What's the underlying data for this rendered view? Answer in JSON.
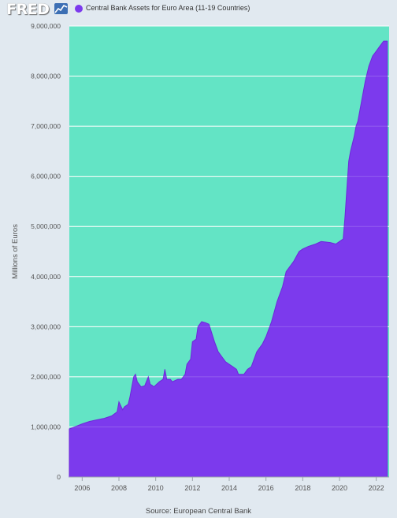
{
  "header": {
    "logo_text": "FRED",
    "legend_label": "Central Bank Assets for Euro Area (11-19 Countries)"
  },
  "source_text": "Source: European Central Bank",
  "colors": {
    "page_background": "#e1e9f0",
    "plot_background": "#63e4c5",
    "series_fill": "#7c3aed",
    "series_line": "#6d28d9",
    "gridline": "#ffffff",
    "axis_text": "#555555"
  },
  "chart_data": {
    "type": "area",
    "title": "",
    "xlabel": "",
    "ylabel": "Millions of Euros",
    "xlim": [
      2005.3,
      2022.7
    ],
    "ylim": [
      0,
      9000000
    ],
    "grid": true,
    "legend_position": "top-left",
    "x_tick_labels": [
      "2006",
      "2008",
      "2010",
      "2012",
      "2014",
      "2016",
      "2018",
      "2020",
      "2022"
    ],
    "y_tick_labels": [
      "0",
      "1,000,000",
      "2,000,000",
      "3,000,000",
      "4,000,000",
      "5,000,000",
      "6,000,000",
      "7,000,000",
      "8,000,000",
      "9,000,000"
    ],
    "series": [
      {
        "name": "Central Bank Assets for Euro Area (11-19 Countries)",
        "x": [
          2005.3,
          2005.6,
          2006.0,
          2006.4,
          2006.8,
          2007.2,
          2007.6,
          2007.9,
          2008.0,
          2008.2,
          2008.3,
          2008.5,
          2008.6,
          2008.8,
          2008.9,
          2009.0,
          2009.2,
          2009.4,
          2009.6,
          2009.7,
          2009.8,
          2009.9,
          2010.2,
          2010.4,
          2010.5,
          2010.6,
          2010.8,
          2010.9,
          2011.2,
          2011.4,
          2011.6,
          2011.7,
          2011.9,
          2012.0,
          2012.2,
          2012.3,
          2012.5,
          2012.7,
          2012.9,
          2013.2,
          2013.4,
          2013.6,
          2013.8,
          2014.0,
          2014.2,
          2014.4,
          2014.5,
          2014.8,
          2015.0,
          2015.2,
          2015.5,
          2015.8,
          2016.0,
          2016.3,
          2016.6,
          2016.9,
          2017.1,
          2017.2,
          2017.5,
          2017.8,
          2018.0,
          2018.3,
          2018.7,
          2019.0,
          2019.5,
          2019.8,
          2020.0,
          2020.2,
          2020.3,
          2020.5,
          2020.6,
          2020.8,
          2020.9,
          2021.0,
          2021.2,
          2021.4,
          2021.6,
          2021.8,
          2022.0,
          2022.2,
          2022.4,
          2022.6
        ],
        "values": [
          960000,
          1000000,
          1060000,
          1110000,
          1140000,
          1170000,
          1220000,
          1300000,
          1500000,
          1340000,
          1400000,
          1450000,
          1600000,
          2000000,
          2050000,
          1900000,
          1800000,
          1820000,
          2000000,
          1850000,
          1830000,
          1800000,
          1900000,
          1950000,
          2150000,
          1950000,
          1950000,
          1900000,
          1950000,
          1950000,
          2050000,
          2250000,
          2350000,
          2700000,
          2750000,
          3000000,
          3100000,
          3080000,
          3050000,
          2700000,
          2500000,
          2400000,
          2300000,
          2250000,
          2200000,
          2150000,
          2050000,
          2050000,
          2150000,
          2200000,
          2500000,
          2650000,
          2800000,
          3100000,
          3500000,
          3800000,
          4100000,
          4150000,
          4300000,
          4500000,
          4550000,
          4600000,
          4650000,
          4700000,
          4680000,
          4650000,
          4700000,
          4750000,
          5200000,
          6300000,
          6500000,
          6800000,
          7000000,
          7100000,
          7500000,
          7900000,
          8200000,
          8400000,
          8500000,
          8600000,
          8700000,
          8700000
        ]
      }
    ]
  }
}
